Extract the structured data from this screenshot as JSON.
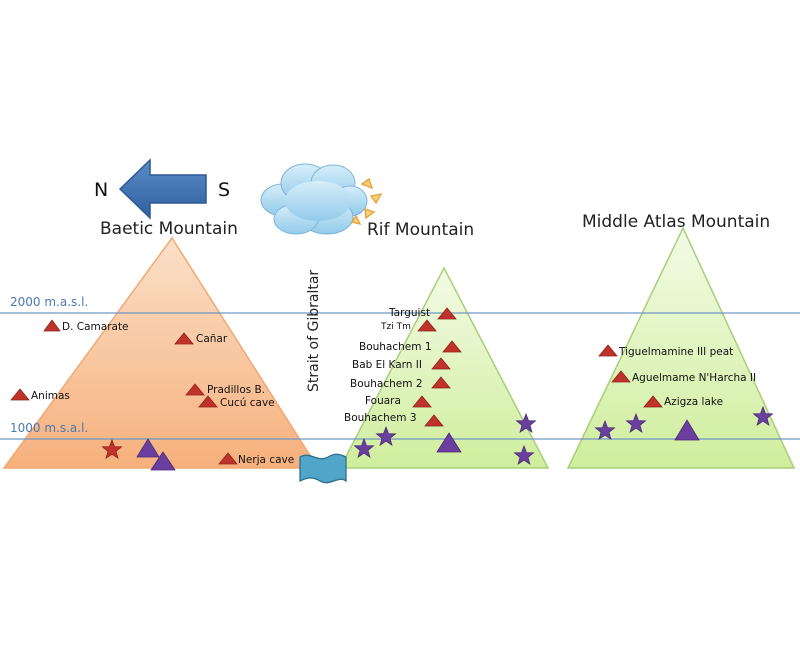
{
  "direction": {
    "north": "N",
    "south": "S"
  },
  "strait_label": "Strait of Gibraltar",
  "altitude_labels": {
    "high": "2000 m.a.s.l.",
    "low": "1000 m.s.a.l."
  },
  "mountains": {
    "baetic": "Baetic Mountain",
    "rif": "Rif Mountain",
    "atlas": "Middle Atlas Mountain"
  },
  "sites": {
    "camarate": "D. Camarate",
    "canar": "Cañar",
    "animas": "Animas",
    "pradillos": "Pradillos B.",
    "cucu": "Cucú cave",
    "nerja": "Nerja cave",
    "targuist": "Targuist",
    "tzitm": "Tzi Tm",
    "bouhachem1": "Bouhachem 1",
    "babelkarn": "Bab El Karn II",
    "bouhachem2": "Bouhachem 2",
    "fouara": "Fouara",
    "bouhachem3": "Bouhachem 3",
    "tiguelmamine": "Tiguelmamine III peat",
    "aguelmame": "Aguelmame N'Harcha II",
    "azigza": "Azigza lake"
  },
  "colors": {
    "baetic_fill": "#f7c39a",
    "rif_fill": "#dff5b8",
    "atlas_fill": "#dff5b8",
    "site_marker": "#c0332b",
    "purple_marker": "#6a3fa0",
    "arrow": "#3f6fb0",
    "cloud": "#a9d8f0",
    "altitude_line": "#6f97c2"
  }
}
